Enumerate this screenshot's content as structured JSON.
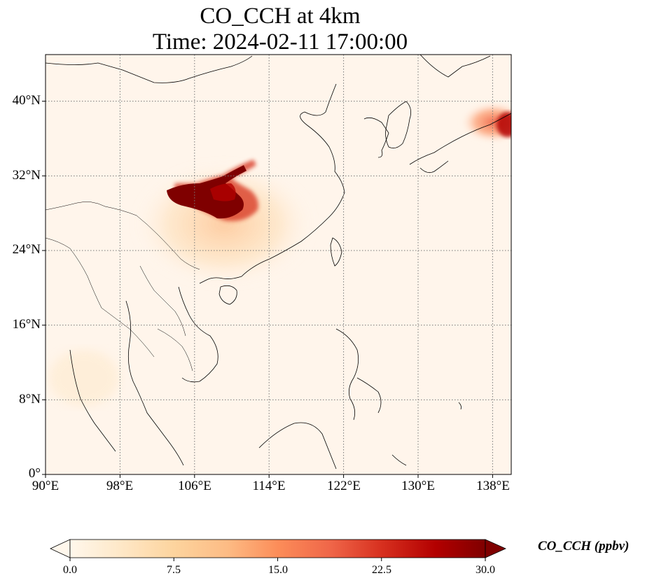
{
  "title": {
    "line1": "CO_CCH at 4km",
    "line2": "Time: 2024-02-11 17:00:00"
  },
  "map": {
    "lon_range": [
      90,
      140
    ],
    "lat_range": [
      0,
      45
    ],
    "lat_ticks": [
      {
        "value": 0,
        "label": "0°"
      },
      {
        "value": 8,
        "label": "8°N"
      },
      {
        "value": 16,
        "label": "16°N"
      },
      {
        "value": 24,
        "label": "24°N"
      },
      {
        "value": 32,
        "label": "32°N"
      },
      {
        "value": 40,
        "label": "40°N"
      }
    ],
    "lon_ticks": [
      {
        "value": 90,
        "label": "90°E"
      },
      {
        "value": 98,
        "label": "98°E"
      },
      {
        "value": 106,
        "label": "106°E"
      },
      {
        "value": 114,
        "label": "114°E"
      },
      {
        "value": 122,
        "label": "122°E"
      },
      {
        "value": 130,
        "label": "130°E"
      },
      {
        "value": 138,
        "label": "138°E"
      }
    ],
    "gridlines": true,
    "background_color": "#fff5eb"
  },
  "colorbar": {
    "label": "CO_CCH (ppbv)",
    "colormap": "OrRd",
    "range": [
      0,
      30
    ],
    "extend": "both",
    "ticks": [
      "0.0",
      "7.5",
      "15.0",
      "22.5",
      "30.0"
    ],
    "tick_values": [
      0,
      7.5,
      15,
      22.5,
      30
    ],
    "colors": [
      "#fff7ec",
      "#fee8c8",
      "#fdd49e",
      "#fdbb84",
      "#fc8d59",
      "#ef6548",
      "#d7301f",
      "#b30000",
      "#7f0000"
    ]
  }
}
